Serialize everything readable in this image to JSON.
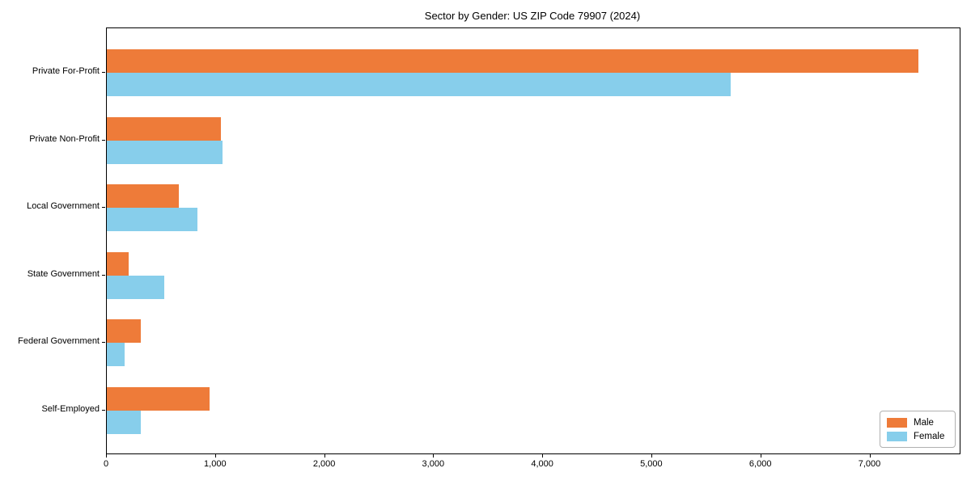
{
  "chart_data": {
    "type": "bar",
    "orientation": "horizontal",
    "title": "Sector by Gender: US ZIP Code 79907 (2024)",
    "categories": [
      "Private For-Profit",
      "Private Non-Profit",
      "Local Government",
      "State Government",
      "Federal Government",
      "Self-Employed"
    ],
    "series": [
      {
        "name": "Male",
        "color": "#EE7B39",
        "values": [
          7440,
          1045,
          660,
          200,
          310,
          940
        ]
      },
      {
        "name": "Female",
        "color": "#87CEEB",
        "values": [
          5720,
          1060,
          830,
          525,
          165,
          310
        ]
      }
    ],
    "xlabel": "",
    "ylabel": "",
    "xlim": [
      0,
      7820
    ],
    "x_ticks": [
      0,
      1000,
      2000,
      3000,
      4000,
      5000,
      6000,
      7000
    ],
    "x_tick_labels": [
      "0",
      "1,000",
      "2,000",
      "3,000",
      "4,000",
      "5,000",
      "6,000",
      "7,000"
    ],
    "grid": false,
    "legend": {
      "position": "lower right",
      "entries": [
        "Male",
        "Female"
      ]
    }
  }
}
